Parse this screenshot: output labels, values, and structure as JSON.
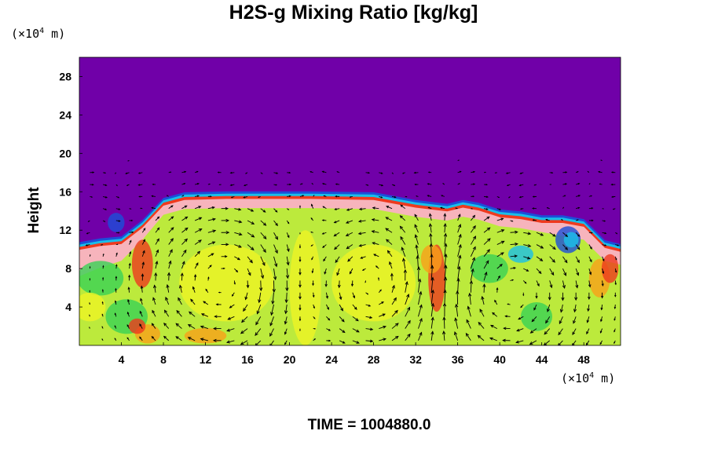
{
  "chart_data": {
    "type": "heatmap",
    "title": "H2S-g Mixing Ratio [kg/kg]",
    "ylabel": "Height",
    "xlabel": "",
    "x_unit_prefix": "(×10",
    "x_unit_exp": "4",
    "x_unit_suffix": " m)",
    "y_unit_prefix": "(×10",
    "y_unit_exp": "4",
    "y_unit_suffix": " m)",
    "xlim": [
      0,
      51.5
    ],
    "ylim": [
      0,
      30
    ],
    "x_ticks": [
      4,
      8,
      12,
      16,
      20,
      24,
      28,
      32,
      36,
      40,
      44,
      48
    ],
    "x_tick_labels": [
      "4",
      "8",
      "12",
      "16",
      "20",
      "24",
      "28",
      "32",
      "36",
      "40",
      "44",
      "48"
    ],
    "y_ticks": [
      4,
      8,
      12,
      16,
      20,
      24,
      28
    ],
    "y_tick_labels": [
      "4",
      "8",
      "12",
      "16",
      "20",
      "24",
      "28"
    ],
    "colors": {
      "upper": "#7000a8",
      "lower": "#bcea3c",
      "front_pink": "#f7b4bc",
      "front_red": "#ee3a1e",
      "front_cyan": "#19bfe8",
      "front_blue": "#1c4fd8",
      "accent_yellow": "#eef424",
      "accent_orange": "#f9a019",
      "accent_green": "#38d255"
    },
    "interface_height": [
      [
        0,
        10.2
      ],
      [
        2,
        10.6
      ],
      [
        4,
        10.8
      ],
      [
        6,
        12.5
      ],
      [
        8,
        14.8
      ],
      [
        10,
        15.4
      ],
      [
        14,
        15.5
      ],
      [
        22,
        15.5
      ],
      [
        28,
        15.4
      ],
      [
        32,
        14.6
      ],
      [
        35,
        14.2
      ],
      [
        36.5,
        14.6
      ],
      [
        38,
        14.3
      ],
      [
        40,
        13.6
      ],
      [
        42,
        13.4
      ],
      [
        44,
        13.0
      ],
      [
        46,
        13.0
      ],
      [
        48,
        12.6
      ],
      [
        50,
        10.4
      ],
      [
        51.5,
        10.0
      ]
    ],
    "circulation_cells": [
      {
        "center_x": 14,
        "center_y": 6.5,
        "rotation": "clockwise"
      },
      {
        "center_x": 28,
        "center_y": 6.5,
        "rotation": "counterclockwise"
      },
      {
        "center_x": 40.5,
        "center_y": 5.5,
        "rotation": "clockwise"
      }
    ]
  },
  "time_label": "TIME = 1004880.0"
}
